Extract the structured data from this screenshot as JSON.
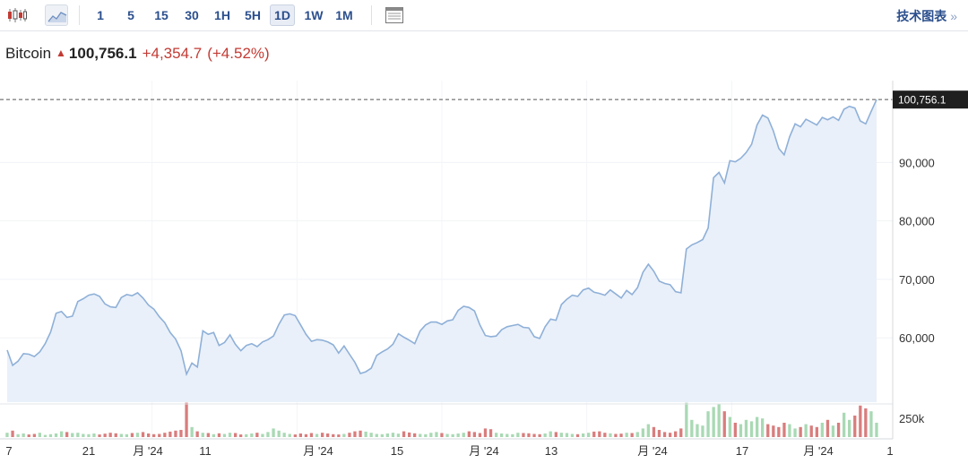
{
  "toolbar": {
    "chart_type_icons": [
      "candlestick-icon",
      "line-chart-icon"
    ],
    "timeframes": [
      "1",
      "5",
      "15",
      "30",
      "1H",
      "5H",
      "1D",
      "1W",
      "1M"
    ],
    "active_timeframe": "1D",
    "layout_icon": "layout-icon",
    "tech_chart_label": "技术图表",
    "tech_chart_chevron": "»"
  },
  "quote": {
    "name": "Bitcoin",
    "direction": "up",
    "price": "100,756.1",
    "change": "+4,354.7",
    "change_pct": "(+4.52%)"
  },
  "colors": {
    "line": "#8fb0d8",
    "area": "#e9f0f9",
    "up_volume": "#a9d9b4",
    "down_volume": "#d97d7d",
    "negative": "#c23b34",
    "link": "#2b4f8d"
  },
  "chart_data": {
    "type": "area",
    "price_axis": {
      "ticks": [
        60000,
        70000,
        80000,
        90000
      ],
      "labels": [
        "60,000",
        "70,000",
        "80,000",
        "90,000"
      ],
      "ylim": [
        49000,
        104000
      ]
    },
    "current_price_label": "100,756.1",
    "volume_axis": {
      "label": "250k",
      "value": 250000
    },
    "x_labels": [
      "7",
      "21",
      "月 '24",
      "11",
      "月 '24",
      "15",
      "月 '24",
      "13",
      "月 '24",
      "17",
      "月 '24",
      "1"
    ],
    "series": [
      {
        "values": [
          57900,
          55300,
          56000,
          57300,
          57200,
          56800,
          57600,
          59000,
          61000,
          64200,
          64500,
          63500,
          63700,
          66200,
          66700,
          67300,
          67500,
          67100,
          65800,
          65300,
          65200,
          66900,
          67400,
          67200,
          67700,
          66800,
          65600,
          64900,
          63600,
          62600,
          60900,
          59800,
          57800,
          53800,
          55700,
          55000,
          61200,
          60600,
          60900,
          58700,
          59200,
          60500,
          58900,
          57800,
          58700,
          59000,
          58500,
          59300,
          59700,
          60300,
          62300,
          63900,
          64100,
          63800,
          62200,
          60600,
          59400,
          59700,
          59600,
          59300,
          58800,
          57400,
          58600,
          57200,
          55800,
          53900,
          54200,
          54800,
          57000,
          57600,
          58100,
          58900,
          60700,
          60100,
          59600,
          59000,
          61200,
          62200,
          62700,
          62700,
          62300,
          62900,
          63100,
          64700,
          65400,
          65200,
          64600,
          62200,
          60400,
          60200,
          60300,
          61400,
          61900,
          62100,
          62300,
          61800,
          61700,
          60200,
          59900,
          61900,
          63200,
          63000,
          65700,
          66600,
          67300,
          67100,
          68200,
          68500,
          67800,
          67600,
          67300,
          68200,
          67500,
          66800,
          68100,
          67400,
          68600,
          71200,
          72600,
          71400,
          69700,
          69300,
          69100,
          67900,
          67700,
          75200,
          75900,
          76300,
          76800,
          78800,
          87400,
          88300,
          86500,
          90300,
          90100,
          90700,
          91700,
          93100,
          96400,
          98100,
          97600,
          95400,
          92400,
          91300,
          94400,
          96600,
          96100,
          97400,
          96900,
          96400,
          97700,
          97300,
          97800,
          97200,
          99100,
          99600,
          99300,
          97100,
          96600,
          98700,
          100756
        ]
      }
    ],
    "volume": [
      30000,
      45000,
      20000,
      25000,
      18000,
      22000,
      30000,
      15000,
      20000,
      25000,
      40000,
      35000,
      28000,
      30000,
      22000,
      20000,
      25000,
      18000,
      24000,
      30000,
      26000,
      22000,
      20000,
      28000,
      30000,
      35000,
      25000,
      20000,
      22000,
      30000,
      38000,
      45000,
      50000,
      240000,
      70000,
      40000,
      30000,
      28000,
      20000,
      26000,
      22000,
      30000,
      28000,
      18000,
      20000,
      25000,
      30000,
      22000,
      35000,
      60000,
      45000,
      30000,
      22000,
      18000,
      25000,
      20000,
      28000,
      22000,
      30000,
      25000,
      20000,
      18000,
      22000,
      30000,
      40000,
      45000,
      38000,
      30000,
      22000,
      20000,
      25000,
      30000,
      24000,
      40000,
      32000,
      26000,
      22000,
      20000,
      30000,
      35000,
      28000,
      22000,
      20000,
      25000,
      30000,
      40000,
      35000,
      28000,
      60000,
      55000,
      30000,
      25000,
      22000,
      20000,
      30000,
      28000,
      26000,
      22000,
      20000,
      25000,
      40000,
      35000,
      30000,
      28000,
      22000,
      20000,
      25000,
      30000,
      38000,
      40000,
      30000,
      26000,
      22000,
      24000,
      30000,
      28000,
      35000,
      60000,
      90000,
      70000,
      50000,
      35000,
      30000,
      40000,
      60000,
      240000,
      120000,
      90000,
      80000,
      180000,
      210000,
      230000,
      180000,
      140000,
      100000,
      90000,
      120000,
      110000,
      140000,
      130000,
      90000,
      80000,
      70000,
      100000,
      90000,
      60000,
      70000,
      90000,
      80000,
      70000,
      100000,
      120000,
      80000,
      100000,
      170000,
      120000,
      150000,
      220000,
      200000,
      180000,
      100000
    ]
  }
}
